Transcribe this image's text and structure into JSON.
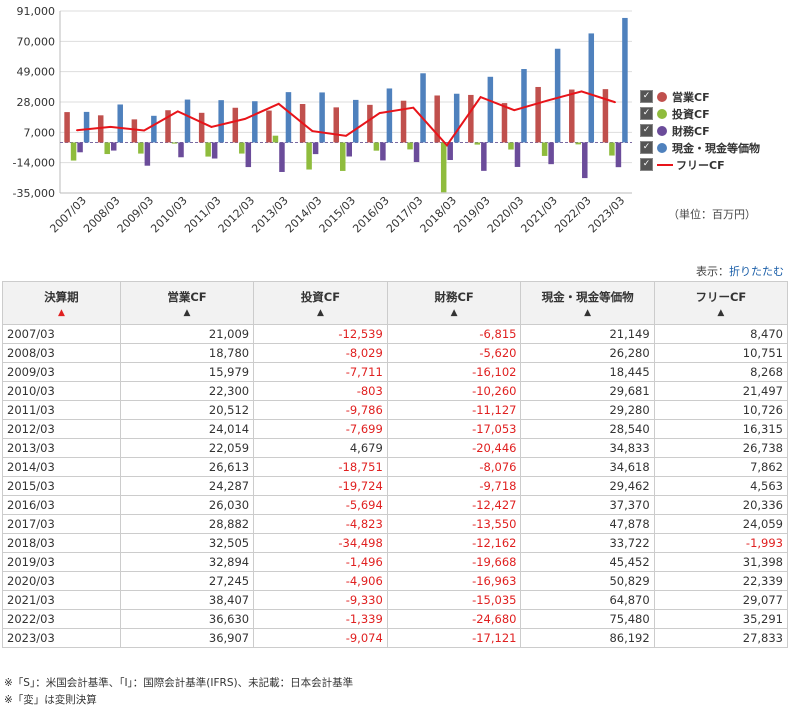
{
  "chart_data": {
    "type": "bar",
    "categories": [
      "2007/03",
      "2008/03",
      "2009/03",
      "2010/03",
      "2011/03",
      "2012/03",
      "2013/03",
      "2014/03",
      "2015/03",
      "2016/03",
      "2017/03",
      "2018/03",
      "2019/03",
      "2020/03",
      "2021/03",
      "2022/03",
      "2023/03"
    ],
    "series": [
      {
        "name": "営業CF",
        "type": "bar",
        "color": "#c0504d",
        "values": [
          21009,
          18780,
          15979,
          22300,
          20512,
          24014,
          22059,
          26613,
          24287,
          26030,
          28882,
          32505,
          32894,
          27245,
          38407,
          36630,
          36907
        ]
      },
      {
        "name": "投資CF",
        "type": "bar",
        "color": "#8fbc3d",
        "values": [
          -12539,
          -8029,
          -7711,
          -803,
          -9786,
          -7699,
          4679,
          -18751,
          -19724,
          -5694,
          -4823,
          -34498,
          -1496,
          -4906,
          -9330,
          -1339,
          -9074
        ]
      },
      {
        "name": "財務CF",
        "type": "bar",
        "color": "#6b4c9a",
        "values": [
          -6815,
          -5620,
          -16102,
          -10260,
          -11127,
          -17053,
          -20446,
          -8076,
          -9718,
          -12427,
          -13550,
          -12162,
          -19668,
          -16963,
          -15035,
          -24680,
          -17121
        ]
      },
      {
        "name": "現金・現金等価物",
        "type": "bar",
        "color": "#4f81bd",
        "values": [
          21149,
          26280,
          18445,
          29681,
          29280,
          28540,
          34833,
          34618,
          29462,
          37370,
          47878,
          33722,
          45452,
          50829,
          64870,
          75480,
          86192
        ]
      },
      {
        "name": "フリーCF",
        "type": "line",
        "color": "#e8141a",
        "values": [
          8470,
          10751,
          8268,
          21497,
          10726,
          16315,
          26738,
          7862,
          4563,
          20336,
          24059,
          -1993,
          31398,
          22339,
          29077,
          35291,
          27833
        ]
      }
    ],
    "yticks": [
      "91,000",
      "70,000",
      "49,000",
      "28,000",
      "7,000",
      "-14,000",
      "-35,000"
    ],
    "ylim": [
      -35000,
      91000
    ],
    "legend": "right"
  },
  "legend_items": [
    {
      "label": "営業CF",
      "color": "#c0504d",
      "kind": "dot"
    },
    {
      "label": "投資CF",
      "color": "#8fbc3d",
      "kind": "dot"
    },
    {
      "label": "財務CF",
      "color": "#6b4c9a",
      "kind": "dot"
    },
    {
      "label": "現金・現金等価物",
      "color": "#4f81bd",
      "kind": "dot"
    },
    {
      "label": "フリーCF",
      "color": "#e8141a",
      "kind": "line"
    }
  ],
  "unit_label": "（単位：百万円）",
  "display": {
    "label": "表示：",
    "link": "折りたたむ"
  },
  "table": {
    "headers": [
      {
        "label": "決算期",
        "arrow": "▲",
        "active": true
      },
      {
        "label": "営業CF",
        "arrow": "▲",
        "active": false
      },
      {
        "label": "投資CF",
        "arrow": "▲",
        "active": false
      },
      {
        "label": "財務CF",
        "arrow": "▲",
        "active": false
      },
      {
        "label": "現金・現金等価物",
        "arrow": "▲",
        "active": false
      },
      {
        "label": "フリーCF",
        "arrow": "▲",
        "active": false
      }
    ],
    "rows": [
      [
        "2007/03",
        "21,009",
        "-12,539",
        "-6,815",
        "21,149",
        "8,470"
      ],
      [
        "2008/03",
        "18,780",
        "-8,029",
        "-5,620",
        "26,280",
        "10,751"
      ],
      [
        "2009/03",
        "15,979",
        "-7,711",
        "-16,102",
        "18,445",
        "8,268"
      ],
      [
        "2010/03",
        "22,300",
        "-803",
        "-10,260",
        "29,681",
        "21,497"
      ],
      [
        "2011/03",
        "20,512",
        "-9,786",
        "-11,127",
        "29,280",
        "10,726"
      ],
      [
        "2012/03",
        "24,014",
        "-7,699",
        "-17,053",
        "28,540",
        "16,315"
      ],
      [
        "2013/03",
        "22,059",
        "4,679",
        "-20,446",
        "34,833",
        "26,738"
      ],
      [
        "2014/03",
        "26,613",
        "-18,751",
        "-8,076",
        "34,618",
        "7,862"
      ],
      [
        "2015/03",
        "24,287",
        "-19,724",
        "-9,718",
        "29,462",
        "4,563"
      ],
      [
        "2016/03",
        "26,030",
        "-5,694",
        "-12,427",
        "37,370",
        "20,336"
      ],
      [
        "2017/03",
        "28,882",
        "-4,823",
        "-13,550",
        "47,878",
        "24,059"
      ],
      [
        "2018/03",
        "32,505",
        "-34,498",
        "-12,162",
        "33,722",
        "-1,993"
      ],
      [
        "2019/03",
        "32,894",
        "-1,496",
        "-19,668",
        "45,452",
        "31,398"
      ],
      [
        "2020/03",
        "27,245",
        "-4,906",
        "-16,963",
        "50,829",
        "22,339"
      ],
      [
        "2021/03",
        "38,407",
        "-9,330",
        "-15,035",
        "64,870",
        "29,077"
      ],
      [
        "2022/03",
        "36,630",
        "-1,339",
        "-24,680",
        "75,480",
        "35,291"
      ],
      [
        "2023/03",
        "36,907",
        "-9,074",
        "-17,121",
        "86,192",
        "27,833"
      ]
    ]
  },
  "notes": [
    "※「S」：米国会計基準、「I」：国際会計基準(IFRS)、未記載：日本会計基準",
    "※「変」は変則決算"
  ]
}
